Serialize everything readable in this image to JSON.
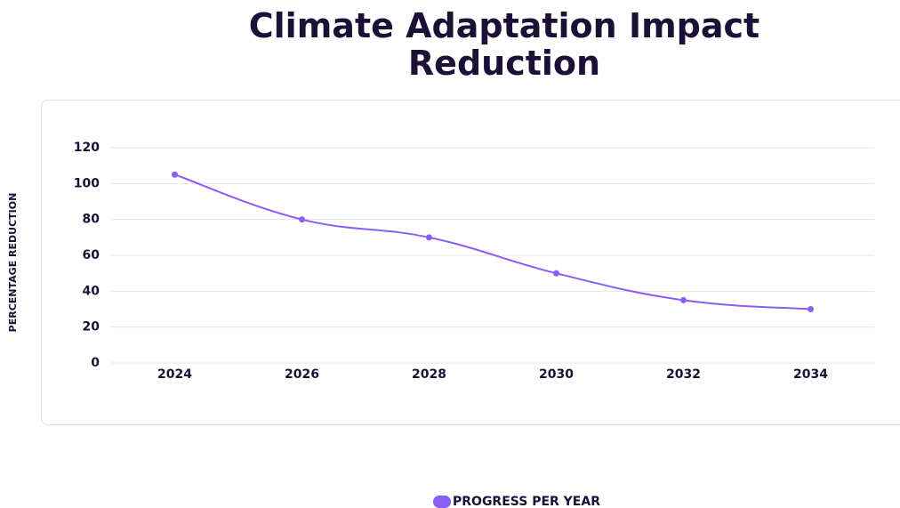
{
  "chart_data": {
    "type": "line",
    "title": "Climate Adaptation Impact Reduction",
    "y_label": "PERCENTAGE REDUCTION",
    "categories": [
      "2024",
      "2026",
      "2028",
      "2030",
      "2032",
      "2034"
    ],
    "series": [
      {
        "name": "PROGRESS PER YEAR",
        "color": "#8b5cf6",
        "values": [
          105,
          80,
          70,
          50,
          35,
          30
        ]
      }
    ],
    "ylim": [
      0,
      120
    ],
    "yticks": [
      0,
      20,
      40,
      60,
      80,
      100,
      120
    ],
    "grid": true
  }
}
